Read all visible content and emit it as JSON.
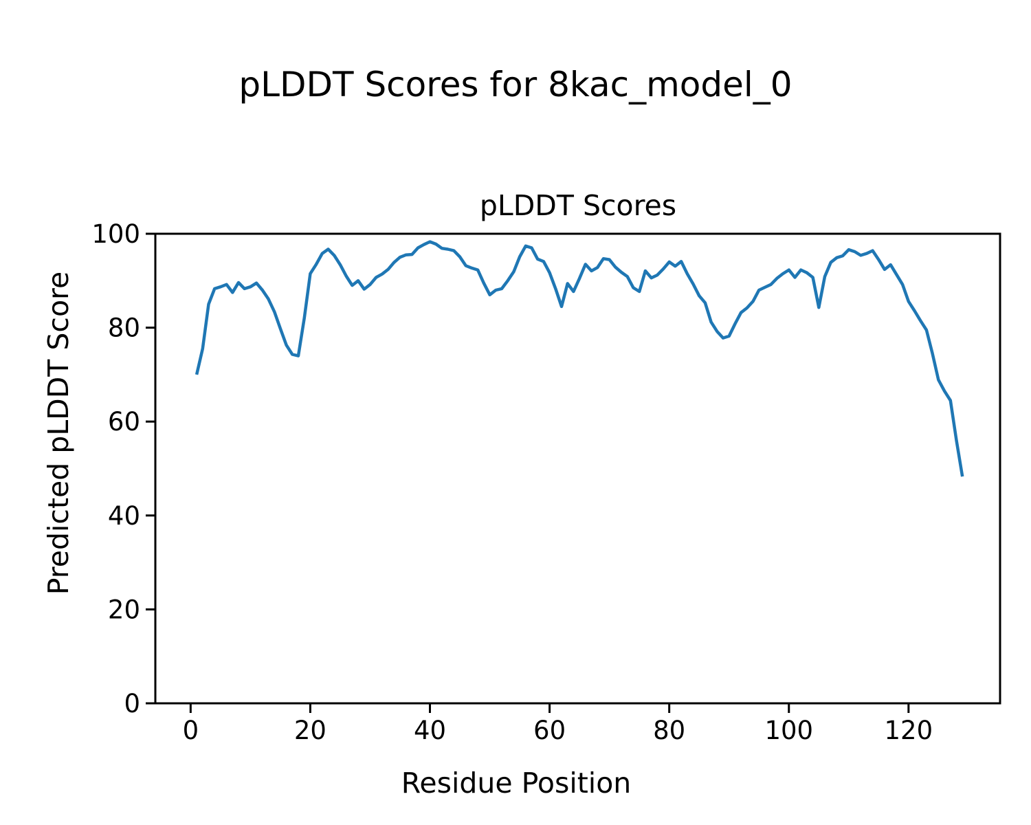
{
  "figure": {
    "suptitle": "pLDDT Scores for 8kac_model_0"
  },
  "chart_data": {
    "type": "line",
    "title": "pLDDT Scores",
    "xlabel": "Residue Position",
    "ylabel": "Predicted pLDDT Score",
    "xlim": [
      -5.9,
      135.3
    ],
    "ylim": [
      0,
      100
    ],
    "x_ticks": [
      0,
      20,
      40,
      60,
      80,
      100,
      120
    ],
    "y_ticks": [
      0,
      20,
      40,
      60,
      80,
      100
    ],
    "grid": false,
    "legend_position": "none",
    "line_color": "#1f77b4",
    "axis_color": "#000000",
    "series": [
      {
        "name": "pLDDT",
        "x_start": 1,
        "x_step": 1,
        "values": [
          70.0,
          75.5,
          85.0,
          88.3,
          88.7,
          89.2,
          87.5,
          89.6,
          88.3,
          88.7,
          89.5,
          88.0,
          86.1,
          83.4,
          79.8,
          76.3,
          74.3,
          74.0,
          82.0,
          91.5,
          93.5,
          95.8,
          96.7,
          95.4,
          93.4,
          91.0,
          89.0,
          90.0,
          88.2,
          89.2,
          90.7,
          91.4,
          92.4,
          93.9,
          95.0,
          95.5,
          95.6,
          97.0,
          97.7,
          98.3,
          97.8,
          96.9,
          96.7,
          96.4,
          95.1,
          93.2,
          92.7,
          92.3,
          89.5,
          87.0,
          88.0,
          88.3,
          90.0,
          91.9,
          95.1,
          97.4,
          97.0,
          94.6,
          94.1,
          91.7,
          88.3,
          84.5,
          89.4,
          87.7,
          90.5,
          93.5,
          92.1,
          92.8,
          94.7,
          94.5,
          92.9,
          91.8,
          90.9,
          88.5,
          87.7,
          92.1,
          90.6,
          91.2,
          92.5,
          94.0,
          93.1,
          94.1,
          91.5,
          89.3,
          86.8,
          85.3,
          81.2,
          79.2,
          77.8,
          78.2,
          80.8,
          83.2,
          84.2,
          85.6,
          88.0,
          88.6,
          89.2,
          90.5,
          91.5,
          92.3,
          90.7,
          92.3,
          91.7,
          90.7,
          84.3,
          90.9,
          93.9,
          94.9,
          95.3,
          96.6,
          96.2,
          95.4,
          95.8,
          96.4,
          94.5,
          92.4,
          93.4,
          91.3,
          89.2,
          85.6,
          83.6,
          81.5,
          79.5,
          74.5,
          68.9,
          66.5,
          64.5,
          56.0,
          48.3
        ]
      }
    ]
  }
}
